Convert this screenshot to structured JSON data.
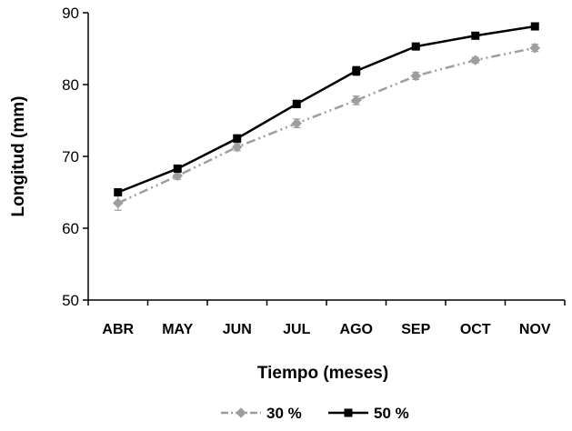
{
  "chart_data": {
    "type": "line",
    "categories": [
      "ABR",
      "MAY",
      "JUN",
      "JUL",
      "AGO",
      "SEP",
      "OCT",
      "NOV"
    ],
    "series": [
      {
        "name": "30 %",
        "values": [
          63.5,
          67.3,
          71.3,
          74.6,
          77.8,
          81.2,
          83.4,
          85.1
        ],
        "errors": [
          1.0,
          0.5,
          0.5,
          0.6,
          0.6,
          0.5,
          0.4,
          0.5
        ],
        "color": "#9e9e9e",
        "marker": "diamond",
        "line_style": "dash-dot-dot"
      },
      {
        "name": "50 %",
        "values": [
          65.0,
          68.3,
          72.5,
          77.3,
          81.9,
          85.3,
          86.8,
          88.1
        ],
        "errors": [
          0.5,
          0.4,
          0.5,
          0.5,
          0.6,
          0.4,
          0.4,
          0.4
        ],
        "color": "#000000",
        "marker": "square",
        "line_style": "solid"
      }
    ],
    "xlabel": "Tiempo (meses)",
    "ylabel": "Longitud (mm)",
    "ylim": [
      50,
      90
    ],
    "yticks": [
      50,
      60,
      70,
      80,
      90
    ],
    "grid": false,
    "legend_position": "bottom"
  }
}
